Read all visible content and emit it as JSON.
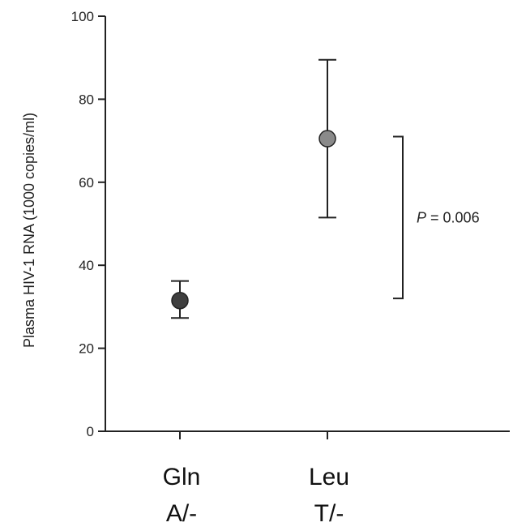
{
  "chart_data": {
    "type": "scatter",
    "ylabel": "Plasma HIV-1 RNA (1000  copies/ml)",
    "ylim": [
      0,
      100
    ],
    "yticks": [
      0,
      20,
      40,
      60,
      80,
      100
    ],
    "categories": [
      {
        "line1": "Gln",
        "line2": "A/-"
      },
      {
        "line1": "Leu",
        "line2": "T/-"
      }
    ],
    "points": [
      {
        "category": "Gln",
        "mean": 31.5,
        "err_low": 27.3,
        "err_high": 36.2,
        "color": "#3f3f3f"
      },
      {
        "category": "Leu",
        "mean": 70.5,
        "err_low": 51.5,
        "err_high": 89.5,
        "color": "#8a8a8a"
      }
    ],
    "annotation": {
      "p_symbol": "P",
      "p_rest": " = 0.006",
      "bracket_low": 32.0,
      "bracket_high": 71.0
    },
    "grid": false
  }
}
